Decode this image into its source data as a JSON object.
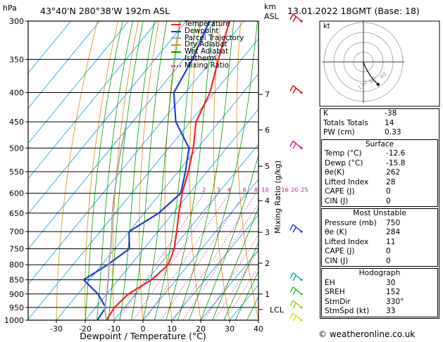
{
  "header": {
    "location": "43°40'N  280°38'W  192m  ASL",
    "datetime": "13.01.2022  18GMT  (Base: 18)",
    "hpa_unit": "hPa",
    "km_unit": "km",
    "asl_unit": "ASL"
  },
  "legend": [
    {
      "label": "Temperature",
      "color": "#ff2020"
    },
    {
      "label": "Dewpoint",
      "color": "#1f3ddb"
    },
    {
      "label": "Parcel Trajectory",
      "color": "#a0a0a0"
    },
    {
      "label": "Dry Adiabat",
      "color": "#e08a00"
    },
    {
      "label": "Wet Adiabat",
      "color": "#00a000"
    },
    {
      "label": "Isotherm",
      "color": "#00a0e0"
    },
    {
      "label": "Mixing Ratio",
      "color": "#e000a0"
    }
  ],
  "chart_data": {
    "type": "skew-t",
    "xlabel": "Dewpoint / Temperature (°C)",
    "ylabel_right": "Mixing Ratio (g/kg)",
    "pressure_levels": [
      300,
      350,
      400,
      450,
      500,
      550,
      600,
      650,
      700,
      750,
      800,
      850,
      900,
      950,
      1000
    ],
    "pressure_tick_labels": [
      "300",
      "350",
      "400",
      "450",
      "500",
      "550",
      "600",
      "650",
      "700",
      "750",
      "800",
      "850",
      "900",
      "950",
      "1000"
    ],
    "temperature_ticks": [
      -30,
      -20,
      -10,
      0,
      10,
      20,
      30,
      40
    ],
    "temperature_tick_labels": [
      "-30",
      "-20",
      "-10",
      "0",
      "10",
      "20",
      "30",
      "40"
    ],
    "xlim": [
      -35,
      40
    ],
    "ylim": [
      1000,
      300
    ],
    "km_ticks": [
      {
        "label": "7",
        "p": 403
      },
      {
        "label": "6",
        "p": 465
      },
      {
        "label": "5",
        "p": 538
      },
      {
        "label": "4",
        "p": 618
      },
      {
        "label": "3",
        "p": 702
      },
      {
        "label": "2",
        "p": 795
      },
      {
        "label": "1",
        "p": 900
      },
      {
        "label": "LCL",
        "p": 958
      }
    ],
    "mixing_ratio_labels": [
      "2",
      "3",
      "4",
      "6",
      "8",
      "10",
      "16",
      "20",
      "25"
    ],
    "mixing_ratio_values": [
      2,
      3,
      4,
      6,
      8,
      10,
      16,
      20,
      25
    ],
    "mixing_ratio_label_p": 600,
    "series": [
      {
        "name": "Temperature",
        "color": "#ff2020",
        "points": [
          [
            1000,
            -12.6
          ],
          [
            950,
            -13.5
          ],
          [
            900,
            -12.5
          ],
          [
            850,
            -8.5
          ],
          [
            800,
            -7.0
          ],
          [
            750,
            -9.5
          ],
          [
            700,
            -13.5
          ],
          [
            650,
            -18.0
          ],
          [
            600,
            -22.5
          ],
          [
            550,
            -26.5
          ],
          [
            500,
            -31.5
          ],
          [
            450,
            -38.0
          ],
          [
            400,
            -41.5
          ],
          [
            350,
            -48.0
          ],
          [
            300,
            -55.0
          ]
        ]
      },
      {
        "name": "Dewpoint",
        "color": "#1f3ddb",
        "points": [
          [
            1000,
            -15.8
          ],
          [
            950,
            -16.5
          ],
          [
            900,
            -23.0
          ],
          [
            850,
            -32.0
          ],
          [
            800,
            -28.0
          ],
          [
            750,
            -25.0
          ],
          [
            700,
            -30.0
          ],
          [
            650,
            -25.0
          ],
          [
            600,
            -23.0
          ],
          [
            550,
            -27.5
          ],
          [
            500,
            -33.0
          ],
          [
            450,
            -45.0
          ],
          [
            400,
            -54.0
          ],
          [
            350,
            -57.0
          ],
          [
            300,
            -62.0
          ]
        ]
      },
      {
        "name": "Parcel Trajectory",
        "color": "#a0a0a0",
        "points": [
          [
            1000,
            -12.6
          ],
          [
            958,
            -16.3
          ],
          [
            900,
            -20.0
          ],
          [
            850,
            -23.5
          ],
          [
            800,
            -27.5
          ],
          [
            750,
            -31.5
          ],
          [
            700,
            -36.0
          ],
          [
            650,
            -41.0
          ],
          [
            600,
            -46.0
          ],
          [
            550,
            -51.0
          ],
          [
            500,
            -56.5
          ],
          [
            450,
            -62.0
          ]
        ]
      }
    ],
    "wind_barbs": [
      {
        "p": 300,
        "color": "#e00000"
      },
      {
        "p": 400,
        "color": "#e00000"
      },
      {
        "p": 500,
        "color": "#e000a0"
      },
      {
        "p": 700,
        "color": "#2030e0"
      },
      {
        "p": 850,
        "color": "#00b0a0"
      },
      {
        "p": 900,
        "color": "#20c040"
      },
      {
        "p": 950,
        "color": "#90d000"
      },
      {
        "p": 1000,
        "color": "#e0d000"
      }
    ],
    "hodograph": {
      "ring_labels": [
        "40",
        "60",
        "120"
      ],
      "unit": "kt",
      "u": [
        0,
        1,
        3,
        6,
        9,
        13
      ],
      "v": [
        0,
        -3,
        -7,
        -12,
        -16,
        -20
      ]
    }
  },
  "indices": {
    "basic": [
      {
        "key": "K",
        "value": "-38"
      },
      {
        "key": "Totals Totals",
        "value": "14"
      },
      {
        "key": "PW (cm)",
        "value": "0.33"
      }
    ],
    "surface": {
      "title": "Surface",
      "rows": [
        {
          "key": "Temp (°C)",
          "value": "-12.6"
        },
        {
          "key": "Dewp (°C)",
          "value": "-15.8"
        },
        {
          "key": "θe(K)",
          "value": "262"
        },
        {
          "key": "Lifted Index",
          "value": "28"
        },
        {
          "key": "CAPE (J)",
          "value": "0"
        },
        {
          "key": "CIN (J)",
          "value": "0"
        }
      ]
    },
    "most_unstable": {
      "title": "Most Unstable",
      "rows": [
        {
          "key": "Pressure (mb)",
          "value": "750"
        },
        {
          "key": "θe (K)",
          "value": "284"
        },
        {
          "key": "Lifted Index",
          "value": "11"
        },
        {
          "key": "CAPE (J)",
          "value": "0"
        },
        {
          "key": "CIN (J)",
          "value": "0"
        }
      ]
    },
    "hodograph": {
      "title": "Hodograph",
      "rows": [
        {
          "key": "EH",
          "value": "30"
        },
        {
          "key": "SREH",
          "value": "152"
        },
        {
          "key": "StmDir",
          "value": "330°"
        },
        {
          "key": "StmSpd (kt)",
          "value": "33"
        }
      ]
    }
  },
  "copyright": "© weatheronline.co.uk"
}
